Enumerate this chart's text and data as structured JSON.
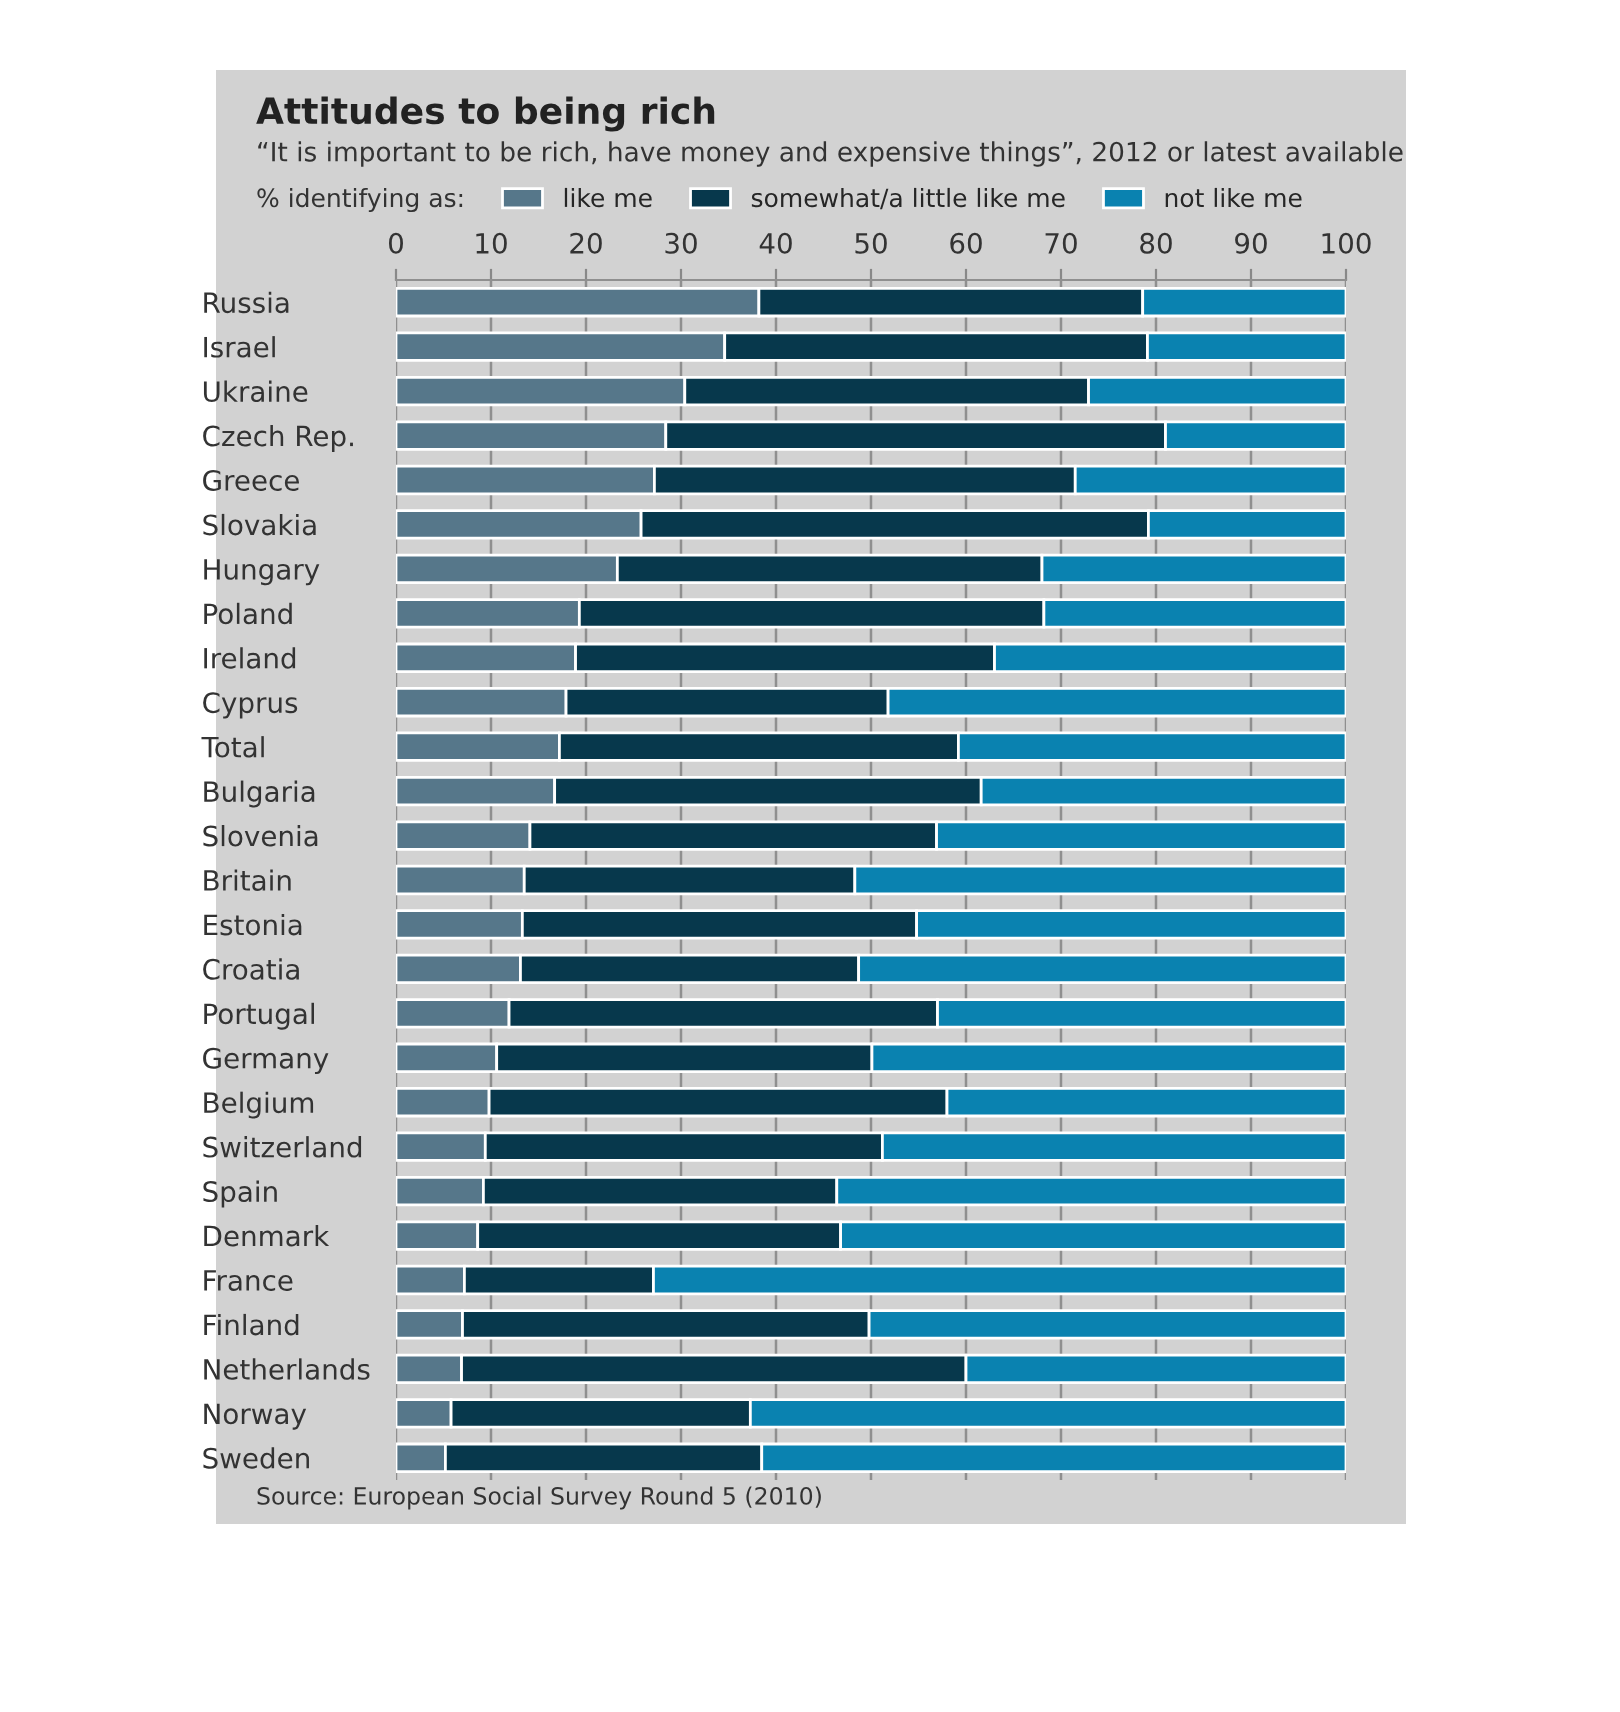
{
  "chart_data": {
    "type": "bar",
    "orientation": "horizontal",
    "stacked": true,
    "title": "Attitudes to being rich",
    "subtitle": "“It is important to be rich, have money and expensive things”, 2012 or latest available",
    "legend_title": "% identifying as:",
    "categories": [
      "Russia",
      "Israel",
      "Ukraine",
      "Czech Rep.",
      "Greece",
      "Slovakia",
      "Hungary",
      "Poland",
      "Ireland",
      "Cyprus",
      "Total",
      "Bulgaria",
      "Slovenia",
      "Britain",
      "Estonia",
      "Croatia",
      "Portugal",
      "Germany",
      "Belgium",
      "Switzerland",
      "Spain",
      "Denmark",
      "France",
      "Finland",
      "Netherlands",
      "Norway",
      "Sweden"
    ],
    "series": [
      {
        "name": "like me",
        "color": "#56778a",
        "values": [
          38.2,
          34.6,
          30.4,
          28.4,
          27.2,
          25.8,
          23.3,
          19.3,
          18.9,
          17.9,
          17.2,
          16.7,
          14.1,
          13.5,
          13.3,
          13.1,
          11.9,
          10.6,
          9.8,
          9.4,
          9.2,
          8.6,
          7.2,
          7.0,
          6.9,
          5.8,
          5.2
        ]
      },
      {
        "name": "somewhat/a little like me",
        "color": "#07384c",
        "values": [
          40.4,
          44.5,
          42.5,
          52.6,
          44.3,
          53.4,
          44.7,
          48.9,
          44.1,
          33.9,
          42.0,
          44.9,
          42.8,
          34.8,
          41.5,
          35.6,
          45.1,
          39.5,
          48.2,
          41.8,
          37.2,
          38.2,
          19.9,
          42.8,
          53.1,
          31.5,
          33.3
        ]
      },
      {
        "name": "not like me",
        "color": "#0a82b0",
        "values": [
          21.4,
          20.9,
          27.1,
          19.0,
          28.5,
          20.8,
          32.0,
          31.8,
          37.0,
          48.2,
          40.8,
          38.4,
          43.1,
          51.7,
          45.2,
          51.3,
          43.0,
          49.9,
          42.0,
          48.8,
          53.6,
          53.2,
          72.9,
          50.2,
          40.0,
          62.7,
          61.5
        ]
      }
    ],
    "xlim": [
      0,
      100
    ],
    "xticks": [
      0,
      10,
      20,
      30,
      40,
      50,
      60,
      70,
      80,
      90,
      100
    ],
    "grid": "x",
    "legend": "top",
    "annotations": [
      "Source: European Social Survey Round 5 (2010)"
    ]
  }
}
